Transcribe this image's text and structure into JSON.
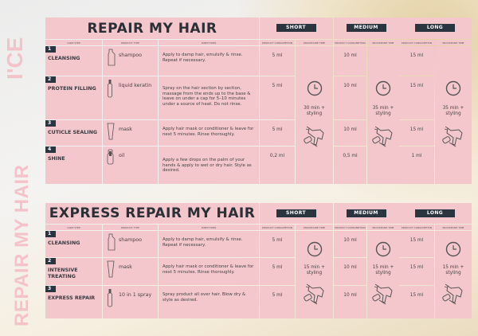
{
  "brand": {
    "logo": "I'CE",
    "side_title": "REPAIR MY HAIR"
  },
  "colors": {
    "cell": "#f4c7cc",
    "badge": "#2b3540",
    "side_text": "#f3c3c9"
  },
  "headers": {
    "care_step": "CARE STEP",
    "product_type": "PRODUCT TYPE",
    "directions": "DIRECTIONS",
    "consumption": "PRODUCT CONSUMPTION",
    "time": "PROCEDURE TIME"
  },
  "lengths": [
    "SHORT",
    "MEDIUM",
    "LONG"
  ],
  "tables": [
    {
      "title": "REPAIR MY HAIR",
      "times": [
        "30 min + styling",
        "35 min + styling",
        "35 min + styling"
      ],
      "rows": [
        {
          "num": "1",
          "step": "CLEANSING",
          "product": "shampoo",
          "icon": "shampoo-bottle-icon",
          "directions": "Apply to damp hair, emulsify & rinse. Repeat if necessary.",
          "consumption": [
            "5 ml",
            "10 ml",
            "15 ml"
          ]
        },
        {
          "num": "2",
          "step": "PROTEIN FILLING",
          "product": "liquid keratin",
          "icon": "vial-icon",
          "directions": "Spray on the hair section by section, massage from the ends up to the base & leave on under a cap for 5–10 minutes under a source of heat. Do not rinse.",
          "consumption": [
            "5 ml",
            "10 ml",
            "15 ml"
          ]
        },
        {
          "num": "3",
          "step": "CUTICLE SEALING",
          "product": "mask",
          "icon": "tube-icon",
          "directions": "Apply hair mask or conditioner & leave for next 5 minutes. Rinse thoroughly.",
          "consumption": [
            "5 ml",
            "10 ml",
            "15 ml"
          ]
        },
        {
          "num": "4",
          "step": "SHINE",
          "product": "oil",
          "icon": "oil-bottle-icon",
          "directions": "Apply a few drops on the palm of your hands & apply to wet or dry hair. Style as desired.",
          "consumption": [
            "0,2 ml",
            "0,5 ml",
            "1 ml"
          ]
        }
      ]
    },
    {
      "title": "EXPRESS REPAIR MY HAIR",
      "times": [
        "15 min + styling",
        "15 min + styling",
        "15 min + styling"
      ],
      "rows": [
        {
          "num": "1",
          "step": "CLEANSING",
          "product": "shampoo",
          "icon": "shampoo-bottle-icon",
          "directions": "Apply to damp hair, emulsify & rinse. Repeat if necessary.",
          "consumption": [
            "5 ml",
            "10 ml",
            "15 ml"
          ]
        },
        {
          "num": "2",
          "step": "INTENSIVE TREATING",
          "product": "mask",
          "icon": "tube-icon",
          "directions": "Apply hair mask or conditioner & leave for next 5 minutes. Rinse thoroughly.",
          "consumption": [
            "5 ml",
            "10 ml",
            "15 ml"
          ]
        },
        {
          "num": "3",
          "step": "EXPRESS REPAIR",
          "product": "10 in 1 spray",
          "icon": "vial-icon",
          "directions": "Spray product all over hair. Blow dry & style as desired.",
          "consumption": [
            "5 ml",
            "10 ml",
            "15 ml"
          ]
        }
      ]
    }
  ]
}
